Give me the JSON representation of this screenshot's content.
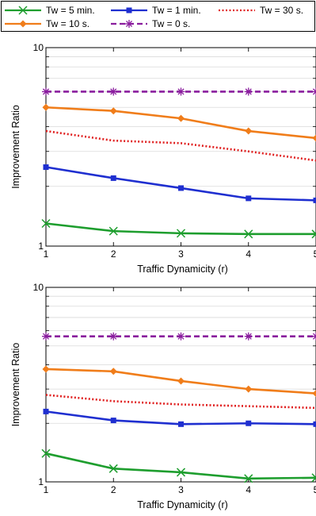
{
  "legend": {
    "placement": "top",
    "entries": [
      {
        "name": "Tw = 5 min.",
        "color": "#1e9e2e",
        "marker": "x",
        "dash": "solid"
      },
      {
        "name": "Tw = 1 min.",
        "color": "#1f2fd0",
        "marker": "square",
        "dash": "solid"
      },
      {
        "name": "Tw = 30 s.",
        "color": "#e02020",
        "marker": "none",
        "dash": "dotted"
      },
      {
        "name": "Tw = 10 s.",
        "color": "#f07d1a",
        "marker": "diamond",
        "dash": "solid"
      },
      {
        "name": "Tw = 0 s.",
        "color": "#8a1d9e",
        "marker": "star",
        "dash": "dashed"
      }
    ]
  },
  "chart_data": [
    {
      "type": "line",
      "xlabel": "Traffic Dynamicity (r)",
      "ylabel": "Improvement Ratio",
      "x": [
        1,
        2,
        3,
        4,
        5
      ],
      "xlim": [
        1,
        5
      ],
      "ylim": [
        1,
        10
      ],
      "yscale": "log",
      "y_ticks": [
        "1",
        "10"
      ],
      "x_ticks": [
        "1",
        "2",
        "3",
        "4",
        "5"
      ],
      "grid": true,
      "series": [
        {
          "name": "Tw = 5 min.",
          "values": [
            1.3,
            1.19,
            1.16,
            1.15,
            1.15
          ]
        },
        {
          "name": "Tw = 1 min.",
          "values": [
            2.5,
            2.2,
            1.96,
            1.74,
            1.7
          ]
        },
        {
          "name": "Tw = 30 s.",
          "values": [
            3.8,
            3.4,
            3.3,
            3.0,
            2.7
          ]
        },
        {
          "name": "Tw = 10 s.",
          "values": [
            5.0,
            4.8,
            4.4,
            3.8,
            3.5
          ]
        },
        {
          "name": "Tw = 0 s.",
          "values": [
            6.0,
            6.0,
            6.0,
            6.0,
            6.0
          ]
        }
      ]
    },
    {
      "type": "line",
      "xlabel": "Traffic Dynamicity (r)",
      "ylabel": "Improvement Ratio",
      "x": [
        1,
        2,
        3,
        4,
        5
      ],
      "xlim": [
        1,
        5
      ],
      "ylim": [
        1,
        10
      ],
      "yscale": "log",
      "y_ticks": [
        "1",
        "10"
      ],
      "x_ticks": [
        "1",
        "2",
        "3",
        "4",
        "5"
      ],
      "grid": true,
      "series": [
        {
          "name": "Tw = 5 min.",
          "values": [
            1.4,
            1.17,
            1.12,
            1.04,
            1.05
          ]
        },
        {
          "name": "Tw = 1 min.",
          "values": [
            2.3,
            2.07,
            1.98,
            2.0,
            1.98
          ]
        },
        {
          "name": "Tw = 30 s.",
          "values": [
            2.8,
            2.6,
            2.5,
            2.45,
            2.4
          ]
        },
        {
          "name": "Tw = 10 s.",
          "values": [
            3.8,
            3.7,
            3.3,
            3.0,
            2.85
          ]
        },
        {
          "name": "Tw = 0 s.",
          "values": [
            5.6,
            5.6,
            5.6,
            5.6,
            5.6
          ]
        }
      ]
    }
  ]
}
